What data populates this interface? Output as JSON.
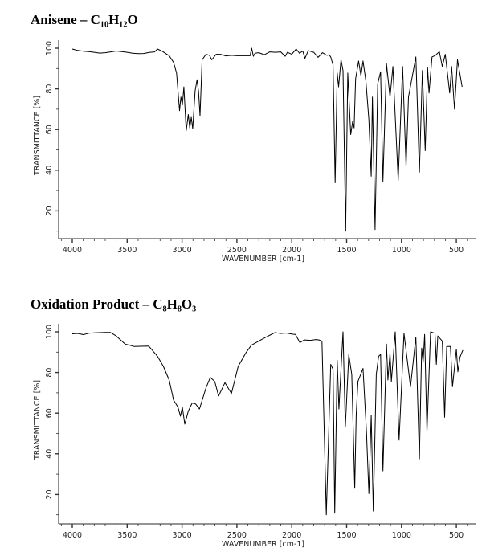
{
  "chart_data": [
    {
      "type": "line",
      "title": "Anisene – C₁₀H₁₂O",
      "xlabel": "WAVENUMBER [cm-1]",
      "ylabel": "TRANSMITTANCE [%]",
      "xlim": [
        4130,
        380
      ],
      "ylim": [
        6,
        103
      ],
      "x_reversed": true,
      "xticks": [
        4000,
        3500,
        3000,
        2500,
        2000,
        1500,
        1000,
        500
      ],
      "yticks": [
        20,
        40,
        60,
        80,
        100
      ],
      "grid": false,
      "line_color": "#000000",
      "series": [
        {
          "x": [
            4000,
            3950,
            3900,
            3850,
            3800,
            3750,
            3700,
            3650,
            3600,
            3550,
            3500,
            3450,
            3400,
            3350,
            3300,
            3250,
            3224,
            3180,
            3117,
            3077,
            3050,
            3023,
            3010,
            2997,
            2983,
            2962,
            2943,
            2930,
            2916,
            2903,
            2881,
            2863,
            2849,
            2836,
            2817,
            2782,
            2750,
            2729,
            2689,
            2650,
            2600,
            2550,
            2500,
            2450,
            2380,
            2365,
            2350,
            2335,
            2300,
            2250,
            2200,
            2150,
            2100,
            2060,
            2040,
            2000,
            1960,
            1930,
            1900,
            1880,
            1850,
            1800,
            1760,
            1720,
            1680,
            1660,
            1645,
            1624,
            1605,
            1586,
            1573,
            1551,
            1533,
            1509,
            1490,
            1463,
            1445,
            1432,
            1418,
            1391,
            1370,
            1351,
            1324,
            1297,
            1276,
            1265,
            1241,
            1217,
            1190,
            1169,
            1137,
            1105,
            1078,
            1030,
            990,
            958,
            936,
            869,
            837,
            810,
            784,
            762,
            749,
            722,
            690,
            655,
            628,
            601,
            561,
            543,
            517,
            490,
            447
          ],
          "y": [
            99.6,
            98.9,
            98.5,
            98.3,
            98.0,
            97.6,
            97.8,
            98.2,
            98.6,
            98.3,
            98.0,
            97.5,
            97.3,
            97.4,
            97.9,
            98.2,
            99.6,
            98.5,
            96.3,
            93.0,
            87.8,
            69.3,
            76.0,
            72.0,
            81.0,
            59.5,
            67.4,
            60.8,
            66.0,
            60.4,
            79.0,
            84.5,
            78.5,
            66.7,
            94.3,
            97.0,
            96.5,
            94.3,
            97.0,
            97.0,
            96.2,
            96.5,
            96.3,
            96.3,
            96.3,
            100.0,
            96.0,
            97.5,
            97.8,
            96.8,
            98.2,
            98.0,
            98.2,
            96.0,
            98.0,
            97.0,
            99.6,
            97.5,
            98.6,
            95.0,
            98.8,
            98.0,
            95.5,
            97.8,
            96.5,
            96.8,
            95.7,
            91.7,
            33.8,
            87.8,
            81.0,
            94.3,
            89.0,
            10.0,
            87.8,
            57.5,
            64.0,
            60.8,
            85.0,
            93.7,
            86.5,
            93.7,
            83.8,
            64.7,
            37.0,
            76.0,
            10.8,
            82.5,
            88.4,
            34.5,
            92.4,
            76.0,
            91.0,
            35.0,
            91.0,
            41.7,
            76.0,
            95.7,
            39.0,
            89.0,
            49.6,
            90.4,
            78.0,
            95.7,
            96.5,
            98.3,
            91.0,
            97.0,
            78.0,
            91.0,
            70.0,
            94.3,
            81.0
          ]
        }
      ]
    },
    {
      "type": "line",
      "title": "Oxidation Product – C₈H₈O₃",
      "xlabel": "WAVENUMBER [cm-1]",
      "ylabel": "TRANSMITTANCE [%]",
      "xlim": [
        4130,
        380
      ],
      "ylim": [
        6,
        103
      ],
      "x_reversed": true,
      "xticks": [
        4000,
        3500,
        3000,
        2500,
        2000,
        1500,
        1000,
        500
      ],
      "yticks": [
        20,
        40,
        60,
        80,
        100
      ],
      "grid": false,
      "line_color": "#000000",
      "series": [
        {
          "x": [
            4000,
            3950,
            3900,
            3850,
            3800,
            3750,
            3700,
            3652,
            3600,
            3518,
            3438,
            3380,
            3304,
            3224,
            3170,
            3117,
            3077,
            3037,
            3015,
            2997,
            2975,
            2943,
            2908,
            2876,
            2841,
            2782,
            2742,
            2702,
            2667,
            2609,
            2550,
            2488,
            2420,
            2368,
            2300,
            2234,
            2154,
            2100,
            2050,
            1990,
            1966,
            1926,
            1886,
            1830,
            1780,
            1752,
            1725,
            1685,
            1645,
            1624,
            1608,
            1586,
            1570,
            1533,
            1512,
            1480,
            1453,
            1426,
            1413,
            1397,
            1351,
            1319,
            1297,
            1276,
            1257,
            1230,
            1209,
            1190,
            1169,
            1137,
            1124,
            1105,
            1092,
            1057,
            1022,
            977,
            918,
            869,
            837,
            816,
            803,
            789,
            768,
            735,
            695,
            682,
            669,
            628,
            607,
            588,
            554,
            535,
            500,
            486,
            467,
            441
          ],
          "y": [
            99.0,
            99.2,
            98.6,
            99.3,
            99.5,
            99.6,
            99.7,
            99.7,
            98.0,
            94.0,
            92.8,
            92.9,
            93.0,
            88.0,
            83.0,
            76.3,
            66.4,
            63.0,
            58.5,
            63.0,
            54.6,
            61.0,
            65.0,
            64.5,
            62.0,
            72.4,
            77.6,
            75.6,
            68.4,
            75.0,
            69.7,
            83.0,
            89.5,
            93.4,
            95.5,
            97.4,
            99.6,
            99.2,
            99.4,
            98.8,
            98.7,
            94.7,
            96.0,
            95.8,
            96.2,
            96.0,
            95.4,
            10.0,
            84.0,
            81.6,
            10.8,
            86.0,
            62.0,
            100.0,
            53.3,
            88.8,
            79.0,
            23.0,
            59.0,
            75.6,
            82.0,
            50.7,
            20.4,
            59.0,
            11.8,
            79.0,
            88.0,
            88.8,
            31.6,
            94.0,
            76.3,
            89.5,
            75.6,
            100.0,
            46.7,
            99.3,
            73.0,
            97.4,
            37.5,
            92.0,
            85.0,
            98.7,
            50.7,
            100.0,
            99.3,
            84.0,
            98.0,
            95.4,
            58.0,
            92.8,
            92.8,
            73.0,
            91.4,
            80.3,
            87.5,
            91.0
          ]
        }
      ]
    }
  ]
}
